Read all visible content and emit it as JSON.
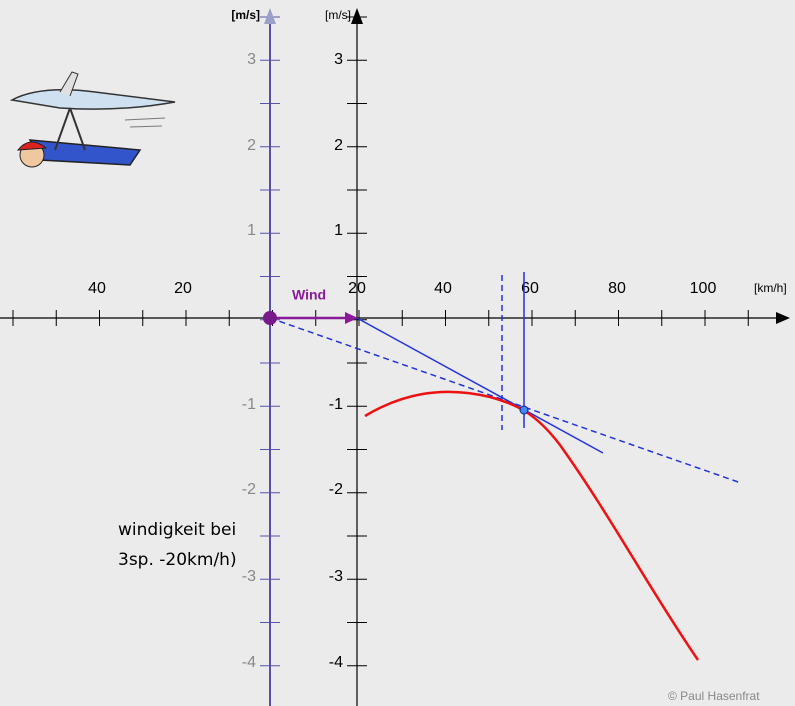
{
  "main_axis": {
    "y_unit": "[m/s]",
    "y_labels": [
      "3",
      "2",
      "1",
      "-1",
      "-2",
      "-3",
      "-4"
    ],
    "x_unit": "[km/h]",
    "x_labels": [
      "20",
      "40",
      "60",
      "80",
      "100"
    ]
  },
  "wind_axis": {
    "y_unit": "[m/s]",
    "y_labels": [
      "3",
      "2",
      "1",
      "-1",
      "-2",
      "-3",
      "-4"
    ],
    "x_labels": [
      "40",
      "20"
    ]
  },
  "wind_label": "Wind",
  "caption_lines": [
    "windigkeit bei",
    "3sp. -20km/h)"
  ],
  "copyright": "© Paul Hasenfrat"
}
